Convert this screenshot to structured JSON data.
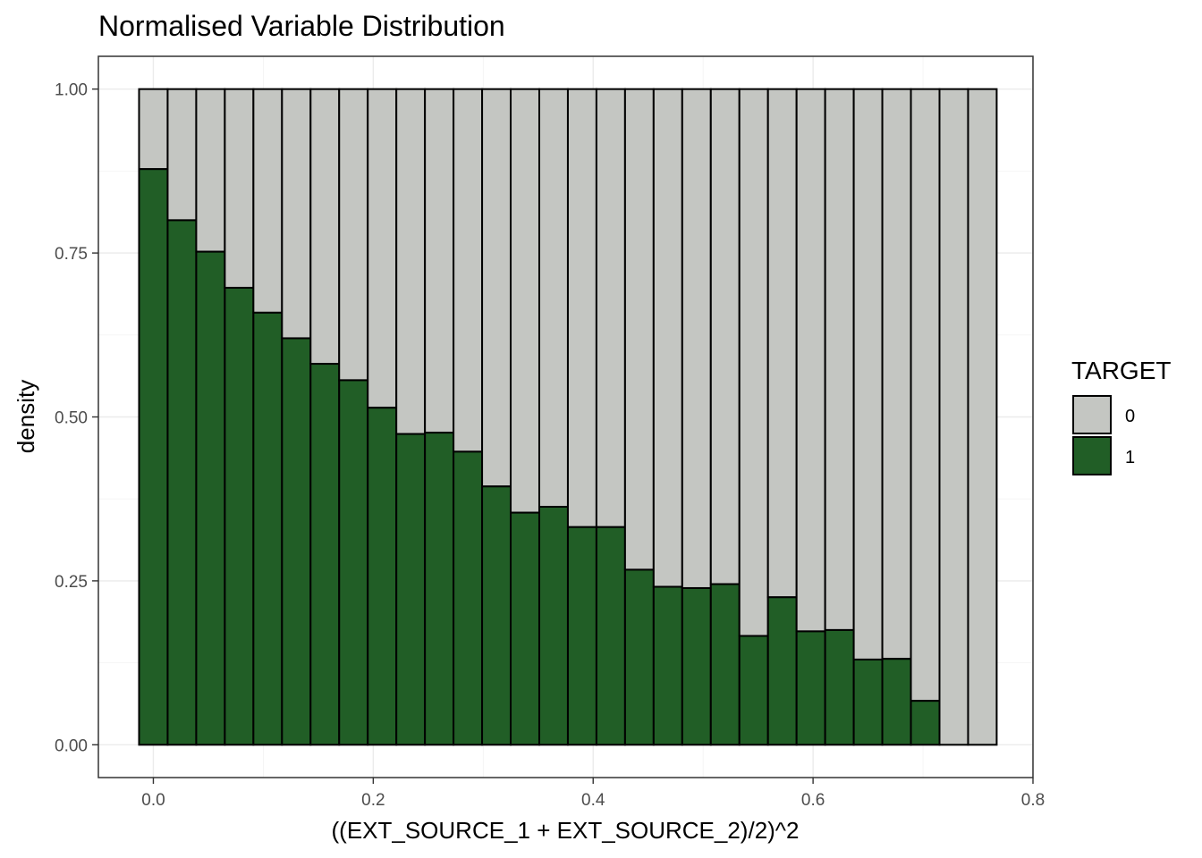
{
  "chart_data": {
    "type": "bar",
    "stacked": true,
    "position": "fill",
    "title": "Normalised Variable Distribution",
    "xlabel": "((EXT_SOURCE_1 + EXT_SOURCE_2)/2)^2",
    "ylabel": "density",
    "xlim": [
      -0.05,
      0.8
    ],
    "ylim": [
      -0.05,
      1.05
    ],
    "x_ticks": [
      0.0,
      0.2,
      0.4,
      0.6,
      0.8
    ],
    "x_tick_labels": [
      "0.0",
      "0.2",
      "0.4",
      "0.6",
      "0.8"
    ],
    "y_ticks": [
      0.0,
      0.25,
      0.5,
      0.75,
      1.0
    ],
    "y_tick_labels": [
      "0.00",
      "0.25",
      "0.50",
      "0.75",
      "1.00"
    ],
    "bin_width": 0.026,
    "bin_centers": [
      0.0,
      0.026,
      0.052,
      0.078,
      0.104,
      0.13,
      0.156,
      0.182,
      0.208,
      0.234,
      0.26,
      0.286,
      0.312,
      0.338,
      0.364,
      0.39,
      0.416,
      0.442,
      0.468,
      0.494,
      0.52,
      0.546,
      0.572,
      0.598,
      0.624,
      0.65,
      0.676,
      0.702,
      0.728,
      0.754
    ],
    "series": [
      {
        "name": "1",
        "color": "#215e26",
        "values": [
          0.878,
          0.8,
          0.752,
          0.697,
          0.659,
          0.62,
          0.581,
          0.556,
          0.514,
          0.474,
          0.476,
          0.447,
          0.394,
          0.354,
          0.363,
          0.332,
          0.332,
          0.267,
          0.241,
          0.239,
          0.245,
          0.166,
          0.225,
          0.173,
          0.175,
          0.13,
          0.131,
          0.067,
          0.0,
          0.0
        ]
      },
      {
        "name": "0",
        "color": "#c4c6c2",
        "values": [
          0.122,
          0.2,
          0.248,
          0.303,
          0.341,
          0.38,
          0.419,
          0.444,
          0.486,
          0.526,
          0.524,
          0.553,
          0.606,
          0.646,
          0.637,
          0.668,
          0.668,
          0.733,
          0.759,
          0.761,
          0.755,
          0.834,
          0.775,
          0.827,
          0.825,
          0.87,
          0.869,
          0.933,
          1.0,
          1.0
        ]
      }
    ],
    "legend": {
      "title": "TARGET",
      "placement": "right",
      "entries": [
        "0",
        "1"
      ]
    },
    "grid": true,
    "theme": "bw"
  }
}
